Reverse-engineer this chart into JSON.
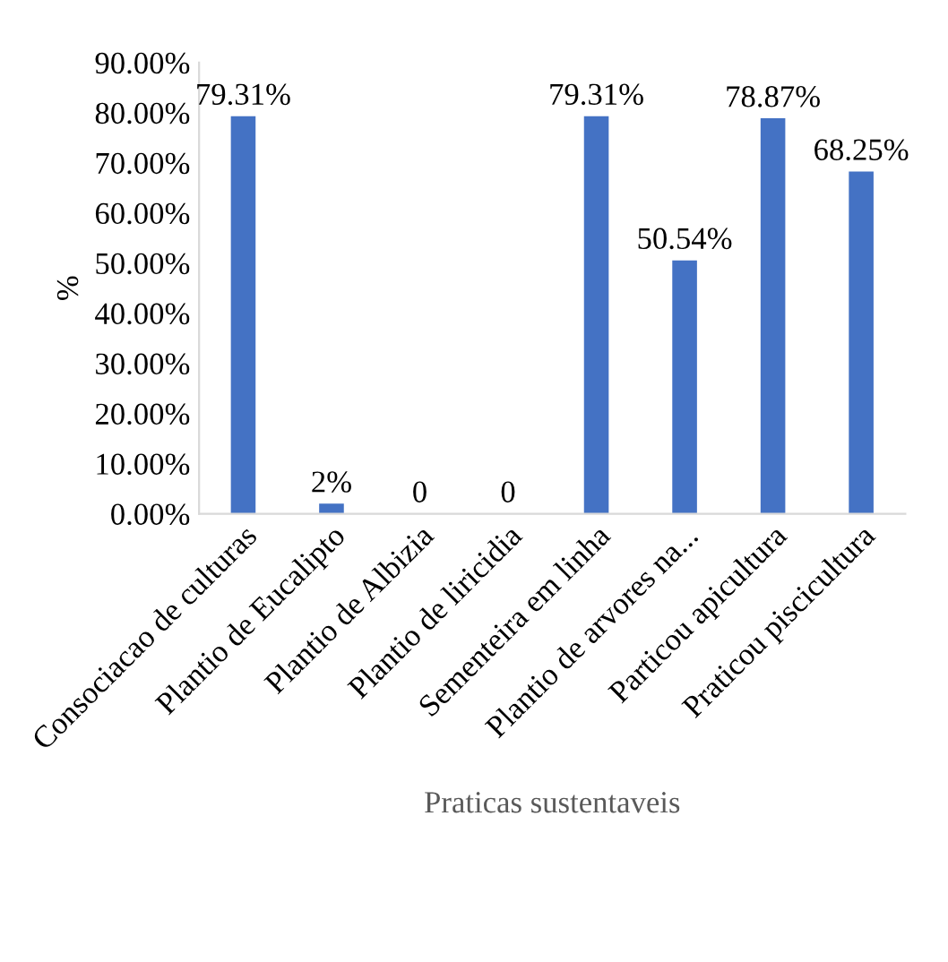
{
  "chart_data": {
    "type": "bar",
    "categories": [
      "Consociacao de culturas",
      "Plantio de Eucalipto",
      "Plantio de Albizia",
      "Plantio de liricidia",
      "Sementeira em linha",
      "Plantio de arvores na...",
      "Particou apicultura",
      "Praticou piscicultura"
    ],
    "values": [
      79.31,
      2,
      0,
      0,
      79.31,
      50.54,
      78.87,
      68.25
    ],
    "value_labels": [
      "79.31%",
      "2%",
      "0",
      "0",
      "79.31%",
      "50.54%",
      "78.87%",
      "68.25%"
    ],
    "color": "#4472c4",
    "ylim": [
      0,
      90
    ],
    "yticks": [
      {
        "value": 0,
        "label": "0.00%"
      },
      {
        "value": 10,
        "label": "10.00%"
      },
      {
        "value": 20,
        "label": "20.00%"
      },
      {
        "value": 30,
        "label": "30.00%"
      },
      {
        "value": 40,
        "label": "40.00%"
      },
      {
        "value": 50,
        "label": "50.00%"
      },
      {
        "value": 60,
        "label": "60.00%"
      },
      {
        "value": 70,
        "label": "70.00%"
      },
      {
        "value": 80,
        "label": "80.00%"
      },
      {
        "value": 90,
        "label": "90.00%"
      }
    ],
    "xlabel": "Praticas sustentaveis",
    "ylabel": "%",
    "grid": false,
    "legend": false
  }
}
